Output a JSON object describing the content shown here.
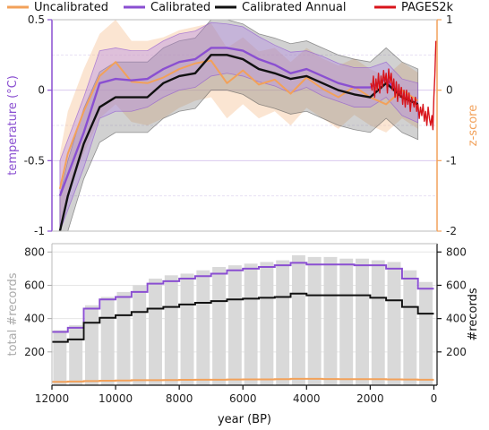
{
  "chart_data": [
    {
      "type": "line",
      "panel": "top",
      "legend_placement": "top",
      "legend": [
        {
          "name": "Uncalibrated",
          "color": "#f2a15a"
        },
        {
          "name": "Calibrated",
          "color": "#8a4fd1"
        },
        {
          "name": "Calibrated Annual",
          "color": "#111111"
        },
        {
          "name": "PAGES2k",
          "color": "#d8141b"
        }
      ],
      "xlabel": "year (BP)",
      "xlim": [
        12000,
        -100
      ],
      "x_ticks": [
        "12000",
        "10000",
        "8000",
        "6000",
        "4000",
        "2000",
        "0"
      ],
      "ylabel_left": "temperature (°C)",
      "ylim_left": [
        -1,
        0.5
      ],
      "y_ticks_left": [
        "0.5",
        "0",
        "-0.5",
        "-1"
      ],
      "ylabel_right": "z-score",
      "ylim_right": [
        -2,
        1
      ],
      "y_ticks_right": [
        "1",
        "0",
        "-1",
        "-2"
      ],
      "series": [
        {
          "name": "Calibrated",
          "color": "#8a4fd1",
          "x": [
            11750,
            11500,
            11000,
            10500,
            10000,
            9500,
            9000,
            8500,
            8000,
            7500,
            7000,
            6500,
            6000,
            5500,
            5000,
            4500,
            4000,
            3500,
            3000,
            2500,
            2000,
            1500,
            1000,
            500
          ],
          "y": [
            -0.75,
            -0.6,
            -0.3,
            0.05,
            0.08,
            0.07,
            0.08,
            0.15,
            0.2,
            0.22,
            0.3,
            0.3,
            0.28,
            0.22,
            0.18,
            0.12,
            0.15,
            0.1,
            0.05,
            0.02,
            0.02,
            0.08,
            -0.05,
            -0.1
          ],
          "upper": [
            -0.5,
            -0.35,
            -0.05,
            0.28,
            0.3,
            0.28,
            0.28,
            0.35,
            0.4,
            0.42,
            0.48,
            0.47,
            0.45,
            0.38,
            0.32,
            0.27,
            0.28,
            0.24,
            0.19,
            0.16,
            0.16,
            0.2,
            0.08,
            0.05
          ],
          "lower": [
            -1.0,
            -0.85,
            -0.55,
            -0.2,
            -0.15,
            -0.15,
            -0.12,
            -0.05,
            0.0,
            0.02,
            0.1,
            0.12,
            0.1,
            0.06,
            0.03,
            -0.02,
            0.02,
            -0.04,
            -0.08,
            -0.12,
            -0.12,
            -0.05,
            -0.18,
            -0.23
          ]
        },
        {
          "name": "Calibrated Annual",
          "color": "#111111",
          "x": [
            11750,
            11500,
            11000,
            10500,
            10000,
            9500,
            9000,
            8500,
            8000,
            7500,
            7000,
            6500,
            6000,
            5500,
            5000,
            4500,
            4000,
            3500,
            3000,
            2500,
            2000,
            1500,
            1000,
            500
          ],
          "y": [
            -1.0,
            -0.75,
            -0.38,
            -0.12,
            -0.05,
            -0.05,
            -0.05,
            0.05,
            0.1,
            0.12,
            0.25,
            0.25,
            0.22,
            0.15,
            0.12,
            0.08,
            0.1,
            0.05,
            0.0,
            -0.03,
            -0.05,
            0.05,
            -0.05,
            -0.1
          ],
          "upper": [
            -0.75,
            -0.5,
            -0.13,
            0.13,
            0.2,
            0.2,
            0.2,
            0.3,
            0.35,
            0.37,
            0.5,
            0.5,
            0.47,
            0.4,
            0.37,
            0.33,
            0.35,
            0.3,
            0.25,
            0.22,
            0.2,
            0.3,
            0.2,
            0.15
          ],
          "lower": [
            -1.0,
            -1.0,
            -0.63,
            -0.37,
            -0.3,
            -0.3,
            -0.3,
            -0.2,
            -0.15,
            -0.13,
            0.0,
            0.0,
            -0.03,
            -0.1,
            -0.13,
            -0.17,
            -0.15,
            -0.2,
            -0.25,
            -0.28,
            -0.3,
            -0.2,
            -0.3,
            -0.35
          ]
        },
        {
          "name": "Uncalibrated",
          "color": "#f2a15a",
          "axis": "right",
          "x": [
            11750,
            11500,
            11000,
            10500,
            10000,
            9500,
            9000,
            8500,
            8000,
            7500,
            7000,
            6500,
            6000,
            5500,
            5000,
            4500,
            4000,
            3500,
            3000,
            2500,
            2000,
            1500,
            1000,
            500
          ],
          "y": [
            -1.4,
            -0.9,
            -0.3,
            0.2,
            0.4,
            0.12,
            0.1,
            0.18,
            0.3,
            0.38,
            0.42,
            0.1,
            0.28,
            0.08,
            0.15,
            -0.05,
            0.18,
            0.02,
            -0.1,
            0.05,
            -0.1,
            -0.2,
            0.0,
            -0.15
          ],
          "upper": [
            -0.9,
            -0.3,
            0.3,
            0.8,
            1.0,
            0.7,
            0.7,
            0.75,
            0.85,
            0.9,
            0.95,
            0.6,
            0.75,
            0.55,
            0.6,
            0.4,
            0.6,
            0.45,
            0.35,
            0.45,
            0.3,
            0.2,
            0.4,
            0.25
          ],
          "lower": [
            -1.9,
            -1.5,
            -0.9,
            -0.4,
            -0.2,
            -0.45,
            -0.5,
            -0.4,
            -0.25,
            -0.15,
            -0.1,
            -0.4,
            -0.2,
            -0.4,
            -0.3,
            -0.5,
            -0.25,
            -0.4,
            -0.55,
            -0.35,
            -0.5,
            -0.6,
            -0.4,
            -0.55
          ]
        },
        {
          "name": "PAGES2k",
          "color": "#d8141b",
          "x": [
            1980,
            1940,
            1900,
            1860,
            1820,
            1780,
            1740,
            1700,
            1660,
            1620,
            1580,
            1540,
            1500,
            1460,
            1420,
            1380,
            1340,
            1300,
            1260,
            1220,
            1180,
            1140,
            1100,
            1060,
            1020,
            980,
            940,
            900,
            860,
            820,
            780,
            740,
            700,
            660,
            620,
            580,
            540,
            500,
            460,
            420,
            380,
            340,
            300,
            260,
            220,
            180,
            140,
            100,
            60,
            30,
            0,
            -30,
            -50,
            -65
          ],
          "y": [
            0.05,
            0.0,
            0.1,
            -0.05,
            0.08,
            0.0,
            0.12,
            -0.02,
            0.1,
            0.02,
            0.14,
            0.05,
            0.12,
            -0.02,
            0.15,
            0.05,
            0.12,
            0.0,
            0.08,
            -0.05,
            0.06,
            -0.08,
            0.04,
            -0.05,
            0.02,
            -0.1,
            0.0,
            -0.12,
            0.0,
            -0.1,
            -0.02,
            -0.15,
            -0.05,
            -0.08,
            -0.12,
            -0.05,
            -0.15,
            -0.1,
            -0.2,
            -0.12,
            -0.18,
            -0.1,
            -0.22,
            -0.15,
            -0.25,
            -0.12,
            -0.2,
            -0.25,
            -0.18,
            -0.28,
            -0.05,
            0.1,
            0.25,
            0.35
          ]
        }
      ]
    },
    {
      "type": "bar",
      "panel": "bottom",
      "xlabel": "year (BP)",
      "xlim": [
        12000,
        -100
      ],
      "x_ticks": [
        "12000",
        "10000",
        "8000",
        "6000",
        "4000",
        "2000",
        "0"
      ],
      "ylabel_left": "total #records",
      "ylim_left": [
        0,
        850
      ],
      "y_ticks_left": [
        "800",
        "600",
        "400",
        "200"
      ],
      "ylabel_right": "#records",
      "y_ticks_right": [
        "800",
        "600",
        "400",
        "200"
      ],
      "bars": {
        "color": "#d9d9d9",
        "x": [
          11750,
          11250,
          10750,
          10250,
          9750,
          9250,
          8750,
          8250,
          7750,
          7250,
          6750,
          6250,
          5750,
          5250,
          4750,
          4250,
          3750,
          3250,
          2750,
          2250,
          1750,
          1250,
          750,
          250
        ],
        "values": [
          330,
          360,
          480,
          530,
          560,
          600,
          640,
          660,
          670,
          690,
          710,
          720,
          730,
          740,
          750,
          780,
          770,
          770,
          760,
          760,
          750,
          740,
          690,
          620
        ]
      },
      "series": [
        {
          "name": "Calibrated",
          "color": "#8a4fd1",
          "x": [
            11750,
            11250,
            10750,
            10250,
            9750,
            9250,
            8750,
            8250,
            7750,
            7250,
            6750,
            6250,
            5750,
            5250,
            4750,
            4250,
            3750,
            3250,
            2750,
            2250,
            1750,
            1250,
            750,
            250
          ],
          "y": [
            320,
            345,
            460,
            515,
            530,
            560,
            610,
            625,
            640,
            655,
            670,
            690,
            700,
            710,
            720,
            735,
            725,
            725,
            725,
            720,
            720,
            700,
            640,
            580
          ]
        },
        {
          "name": "Calibrated Annual",
          "color": "#111111",
          "x": [
            11750,
            11250,
            10750,
            10250,
            9750,
            9250,
            8750,
            8250,
            7750,
            7250,
            6750,
            6250,
            5750,
            5250,
            4750,
            4250,
            3750,
            3250,
            2750,
            2250,
            1750,
            1250,
            750,
            250
          ],
          "y": [
            260,
            275,
            375,
            405,
            420,
            440,
            460,
            470,
            485,
            495,
            505,
            515,
            520,
            525,
            530,
            550,
            540,
            540,
            540,
            540,
            525,
            510,
            470,
            430
          ]
        },
        {
          "name": "Uncalibrated",
          "color": "#f2a15a",
          "x": [
            11750,
            11250,
            10750,
            10250,
            9750,
            9250,
            8750,
            8250,
            7750,
            7250,
            6750,
            6250,
            5750,
            5250,
            4750,
            4250,
            3750,
            3250,
            2750,
            2250,
            1750,
            1250,
            750,
            250
          ],
          "y": [
            20,
            22,
            25,
            27,
            28,
            30,
            30,
            31,
            32,
            33,
            33,
            34,
            35,
            35,
            36,
            38,
            38,
            37,
            36,
            36,
            36,
            35,
            34,
            33
          ]
        }
      ]
    }
  ]
}
